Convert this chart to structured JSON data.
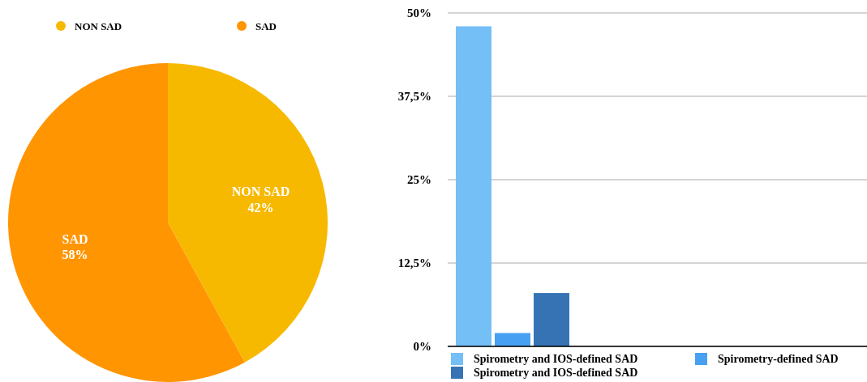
{
  "chart_data": [
    {
      "type": "pie",
      "categories": [
        "NON SAD",
        "SAD"
      ],
      "values": [
        42,
        58
      ],
      "colors": [
        "#f7b900",
        "#ff9500"
      ],
      "value_labels": [
        "42%",
        "58%"
      ],
      "legend": "top"
    },
    {
      "type": "bar",
      "categories": [
        null
      ],
      "series": [
        {
          "name": "Spirometry and IOS-defined SAD",
          "color": "#75bff7",
          "values": [
            48
          ]
        },
        {
          "name": "Spirometry-defined SAD",
          "color": "#48a0f2",
          "values": [
            2
          ]
        },
        {
          "name": "Spirometry and IOS-defined SAD",
          "color": "#3673b5",
          "values": [
            8
          ]
        }
      ],
      "ylim": [
        0,
        50
      ],
      "yticks": [
        {
          "value": 0,
          "label": "0%"
        },
        {
          "value": 12.5,
          "label": "12,5%"
        },
        {
          "value": 25,
          "label": "25%"
        },
        {
          "value": 37.5,
          "label": "37,5%"
        },
        {
          "value": 50,
          "label": "50%"
        }
      ],
      "grid": "y",
      "legend": "bottom"
    }
  ]
}
